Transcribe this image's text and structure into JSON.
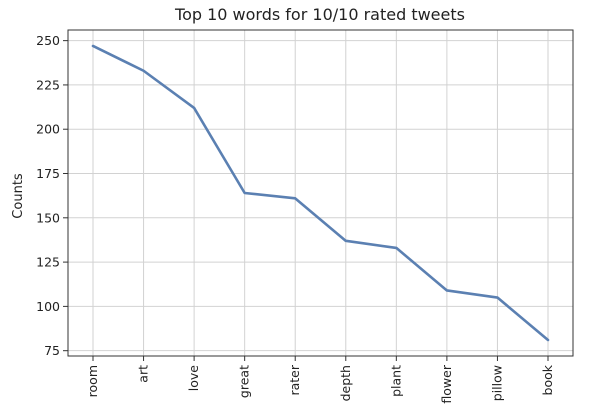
{
  "chart_data": {
    "type": "line",
    "title": "Top 10 words for 10/10 rated tweets",
    "xlabel": "",
    "ylabel": "Counts",
    "categories": [
      "room",
      "art",
      "love",
      "great",
      "rater",
      "depth",
      "plant",
      "flower",
      "pillow",
      "book"
    ],
    "series": [
      {
        "values": [
          247,
          233,
          212,
          164,
          161,
          137,
          133,
          109,
          105,
          81
        ]
      }
    ],
    "ylim": [
      72,
      256
    ],
    "yticks": [
      75,
      100,
      125,
      150,
      175,
      200,
      225,
      250
    ],
    "grid": true,
    "line_color": "#5b80b2"
  }
}
